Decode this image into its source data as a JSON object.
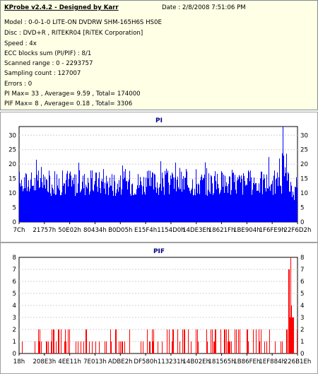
{
  "info": {
    "title": "KProbe v2.4.2 - Designed by Karr",
    "date": "Date : 2/8/2008 7:51:06 PM",
    "lines": [
      "Model : 0-0-1-0 LITE-ON DVDRW SHM-165H6S HS0E",
      "Disc : DVD+R , RITEKR04 [RiTEK Corporation]",
      "Speed : 4x",
      "ECC blocks sum (PI/PIF) : 8/1",
      "Scanned range : 0 - 2293757",
      "Sampling count : 127007",
      "Errors : 0",
      "PI Max= 33 , Average= 9.59 , Total= 174000",
      "PIF Max= 8 , Average= 0.18 , Total= 3306"
    ]
  },
  "chart_data": [
    {
      "type": "bar",
      "title": "PI",
      "ylim": [
        0,
        33
      ],
      "yticks": [
        0,
        5,
        10,
        15,
        20,
        25,
        30
      ],
      "xticks": [
        "7Ch",
        "21757h",
        "50E02h",
        "80434h",
        "B0D05h",
        "E15F4h",
        "1154D0h",
        "14DE3Eh",
        "18621Fh",
        "1BE904h",
        "1F6FE9h",
        "22F6D2h"
      ],
      "color": "#0000ff",
      "stats": {
        "max": 33,
        "average": 9.59,
        "total": 174000
      }
    },
    {
      "type": "bar",
      "title": "PIF",
      "ylim": [
        0,
        8
      ],
      "yticks": [
        0,
        1,
        2,
        3,
        4,
        5,
        6,
        7,
        8
      ],
      "xticks": [
        "18h",
        "208E3h",
        "4EE11h",
        "7E013h",
        "ADBE2h",
        "DF580h",
        "113231h",
        "14B02Eh",
        "181565h",
        "1B86FEh",
        "1EF884h",
        "226B1Eh"
      ],
      "color": "#ff0000",
      "stats": {
        "max": 8,
        "average": 0.18,
        "total": 3306
      }
    }
  ]
}
